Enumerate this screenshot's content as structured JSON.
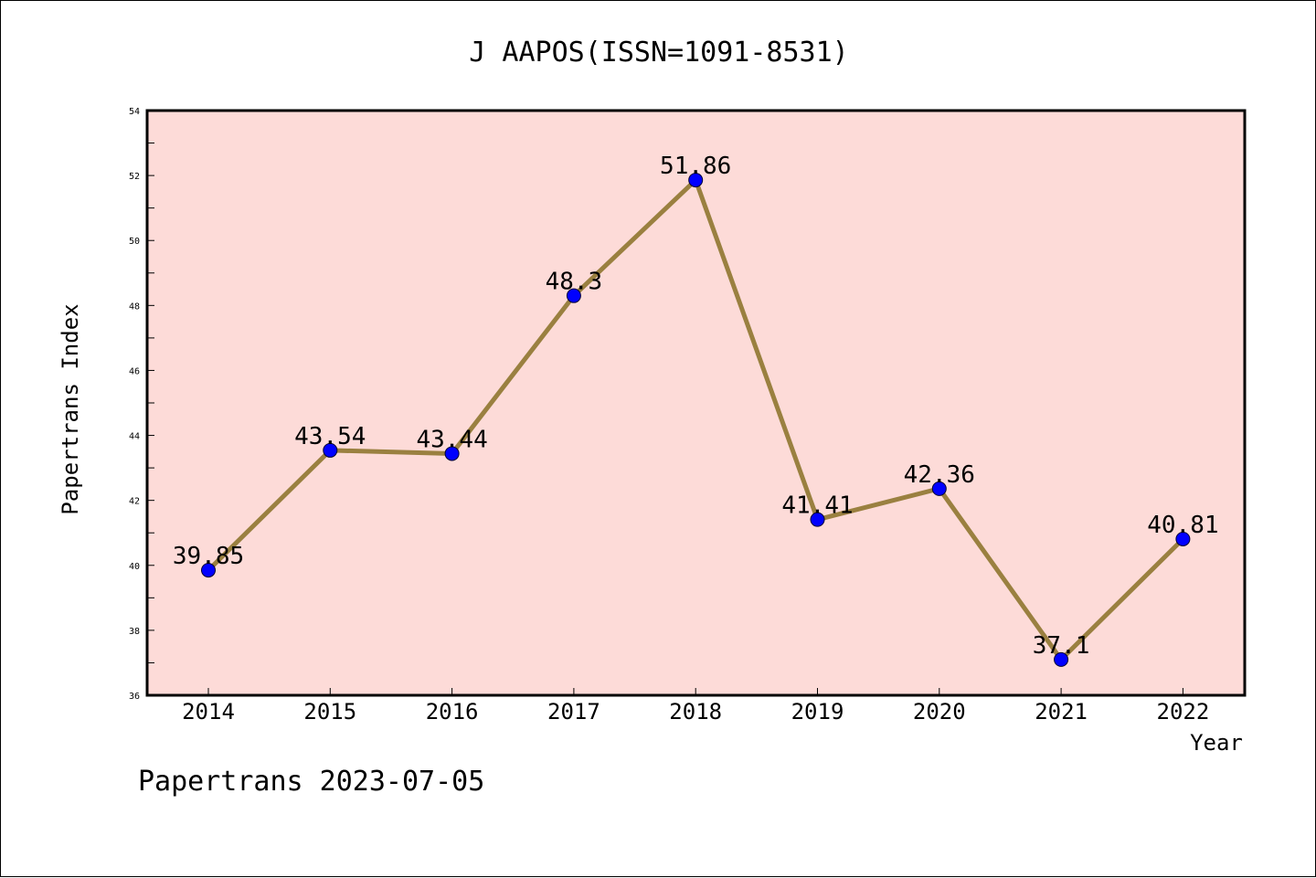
{
  "chart_data": {
    "type": "line",
    "title": "J AAPOS(ISSN=1091-8531)",
    "xlabel": "Year",
    "ylabel": "Papertrans Index",
    "categories": [
      "2014",
      "2015",
      "2016",
      "2017",
      "2018",
      "2019",
      "2020",
      "2021",
      "2022"
    ],
    "series": [
      {
        "values": [
          39.85,
          43.54,
          43.44,
          48.3,
          51.86,
          41.41,
          42.36,
          37.1,
          40.81
        ],
        "labels": [
          "39.85",
          "43.54",
          "43.44",
          "48.3",
          "51.86",
          "41.41",
          "42.36",
          "37.1",
          "40.81"
        ]
      }
    ],
    "ylim": [
      36,
      54
    ],
    "yticks": [
      "36",
      "38",
      "40",
      "42",
      "44",
      "46",
      "48",
      "50",
      "52",
      "54"
    ],
    "grid": false,
    "legend": "none",
    "footer": "Papertrans 2023-07-05",
    "colors": {
      "plot_background": "#fddbd8",
      "line": "#9a8040",
      "marker": "#0000ff",
      "axes": "#000000"
    }
  }
}
